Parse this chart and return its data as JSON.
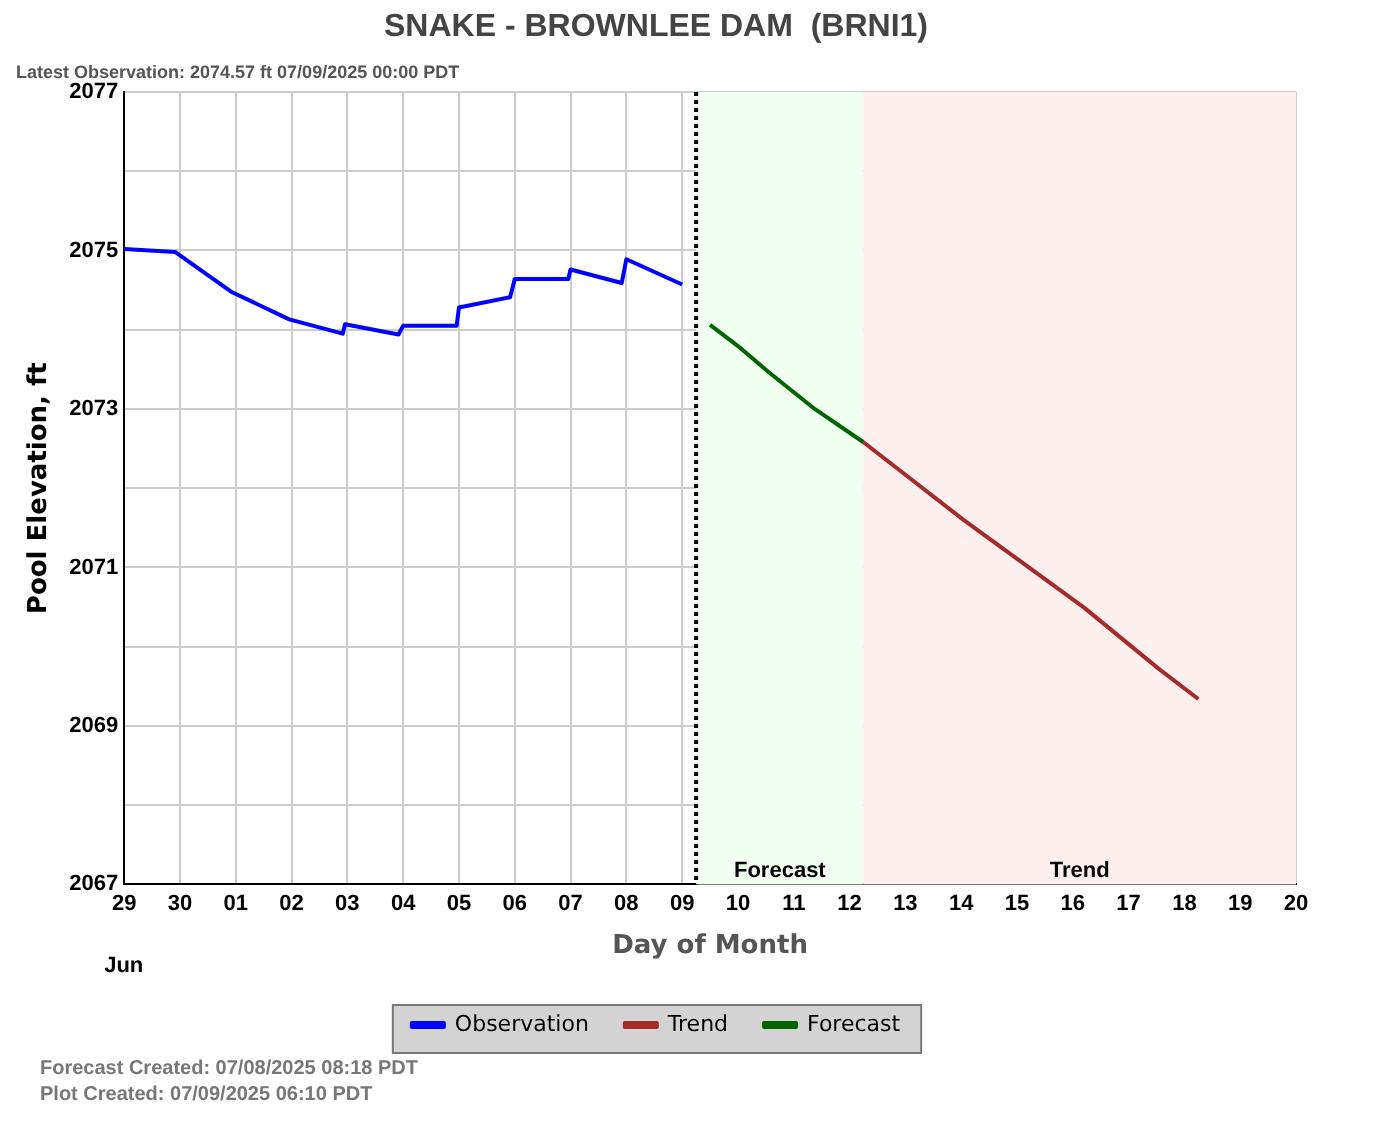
{
  "chart_data": {
    "type": "line",
    "title": "SNAKE - BROWNLEE DAM  (BRNI1)",
    "subtitle": "Latest Observation: 2074.57 ft 07/09/2025 00:00 PDT",
    "xlabel": "Day of Month",
    "ylabel": "Pool Elevation, ft",
    "xlim": [
      "2025-06-29",
      "2025-07-20"
    ],
    "xticks": [
      {
        "value": "2025-06-29",
        "label": "29"
      },
      {
        "value": "2025-06-30",
        "label": "30"
      },
      {
        "value": "2025-07-01",
        "label": "01"
      },
      {
        "value": "2025-07-02",
        "label": "02"
      },
      {
        "value": "2025-07-03",
        "label": "03"
      },
      {
        "value": "2025-07-04",
        "label": "04"
      },
      {
        "value": "2025-07-05",
        "label": "05"
      },
      {
        "value": "2025-07-06",
        "label": "06"
      },
      {
        "value": "2025-07-07",
        "label": "07"
      },
      {
        "value": "2025-07-08",
        "label": "08"
      },
      {
        "value": "2025-07-09",
        "label": "09"
      },
      {
        "value": "2025-07-10",
        "label": "10"
      },
      {
        "value": "2025-07-11",
        "label": "11"
      },
      {
        "value": "2025-07-12",
        "label": "12"
      },
      {
        "value": "2025-07-13",
        "label": "13"
      },
      {
        "value": "2025-07-14",
        "label": "14"
      },
      {
        "value": "2025-07-15",
        "label": "15"
      },
      {
        "value": "2025-07-16",
        "label": "16"
      },
      {
        "value": "2025-07-17",
        "label": "17"
      },
      {
        "value": "2025-07-18",
        "label": "18"
      },
      {
        "value": "2025-07-19",
        "label": "19"
      },
      {
        "value": "2025-07-20",
        "label": "20"
      }
    ],
    "ylim": [
      2067,
      2077
    ],
    "yticks": [
      2067,
      {
        "value": 2068,
        "label": null
      },
      2069,
      {
        "value": 2070,
        "label": null
      },
      2071,
      {
        "value": 2072,
        "label": null
      },
      2073,
      {
        "value": 2074,
        "label": null
      },
      2075,
      {
        "value": 2076,
        "label": null
      },
      2077
    ],
    "series": [
      {
        "name": "Observation",
        "color": "#0000ff",
        "x": [
          "2025-06-29T00:00",
          "2025-06-29T22:00",
          "2025-06-30T22:00",
          "2025-07-01T23:00",
          "2025-07-02T22:00",
          "2025-07-02T23:00",
          "2025-07-03T22:00",
          "2025-07-04T00:00",
          "2025-07-04T23:00",
          "2025-07-05T00:00",
          "2025-07-05T22:00",
          "2025-07-06T00:00",
          "2025-07-06T23:00",
          "2025-07-07T00:00",
          "2025-07-07T22:00",
          "2025-07-08T00:00",
          "2025-07-09T00:00"
        ],
        "values": [
          2075.02,
          2074.98,
          2074.48,
          2074.13,
          2073.95,
          2074.07,
          2073.94,
          2074.05,
          2074.05,
          2074.28,
          2074.41,
          2074.64,
          2074.64,
          2074.76,
          2074.59,
          2074.89,
          2074.57
        ]
      },
      {
        "name": "Trend",
        "color": "#a52a2a",
        "x": [
          "2025-07-12T06:00",
          "2025-07-14T01:00",
          "2025-07-16T05:00",
          "2025-07-17T13:00",
          "2025-07-18T06:00"
        ],
        "values": [
          2072.58,
          2071.6,
          2070.49,
          2069.72,
          2069.34
        ]
      },
      {
        "name": "Forecast",
        "color": "#006400",
        "x": [
          "2025-07-09T12:00",
          "2025-07-10T01:00",
          "2025-07-10T13:00",
          "2025-07-11T09:00",
          "2025-07-12T06:00"
        ],
        "values": [
          2074.06,
          2073.77,
          2073.47,
          2073.0,
          2072.58
        ]
      }
    ],
    "bands": [
      {
        "axis": "x",
        "from": "2025-07-09T06:00",
        "to": "2025-07-12T06:00",
        "label": "Forecast",
        "color": "#f0fff0"
      },
      {
        "axis": "x",
        "from": "2025-07-12T06:00",
        "to": "2025-07-20",
        "label": "Trend",
        "color": "#fff0f0"
      }
    ],
    "ref_lines": [
      {
        "axis": "x",
        "value": "2025-07-09T06:00",
        "color": "#000000",
        "line_style": "dotted"
      }
    ],
    "annotations": [
      "Jun",
      "Forecast Created: 07/08/2025 08:18 PDT",
      "Plot Created: 07/09/2025 06:10 PDT"
    ],
    "grid": true,
    "legend": "bottom",
    "marker": "none",
    "line_style": "solid"
  }
}
